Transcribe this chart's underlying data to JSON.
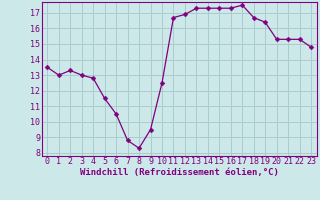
{
  "x": [
    0,
    1,
    2,
    3,
    4,
    5,
    6,
    7,
    8,
    9,
    10,
    11,
    12,
    13,
    14,
    15,
    16,
    17,
    18,
    19,
    20,
    21,
    22,
    23
  ],
  "y": [
    13.5,
    13.0,
    13.3,
    13.0,
    12.8,
    11.5,
    10.5,
    8.8,
    8.3,
    9.5,
    12.5,
    16.7,
    16.9,
    17.3,
    17.3,
    17.3,
    17.3,
    17.5,
    16.7,
    16.4,
    15.3,
    15.3,
    15.3,
    14.8
  ],
  "line_color": "#800080",
  "marker": "D",
  "marker_size": 2.5,
  "bg_color": "#cce8e8",
  "grid_color": "#aacccc",
  "xlabel": "Windchill (Refroidissement éolien,°C)",
  "xlabel_color": "#800080",
  "xlim": [
    -0.5,
    23.5
  ],
  "ylim": [
    7.8,
    17.7
  ],
  "yticks": [
    8,
    9,
    10,
    11,
    12,
    13,
    14,
    15,
    16,
    17
  ],
  "xticks": [
    0,
    1,
    2,
    3,
    4,
    5,
    6,
    7,
    8,
    9,
    10,
    11,
    12,
    13,
    14,
    15,
    16,
    17,
    18,
    19,
    20,
    21,
    22,
    23
  ],
  "tick_color": "#800080",
  "spine_color": "#800080",
  "font_size": 6,
  "label_font_size": 6.5
}
